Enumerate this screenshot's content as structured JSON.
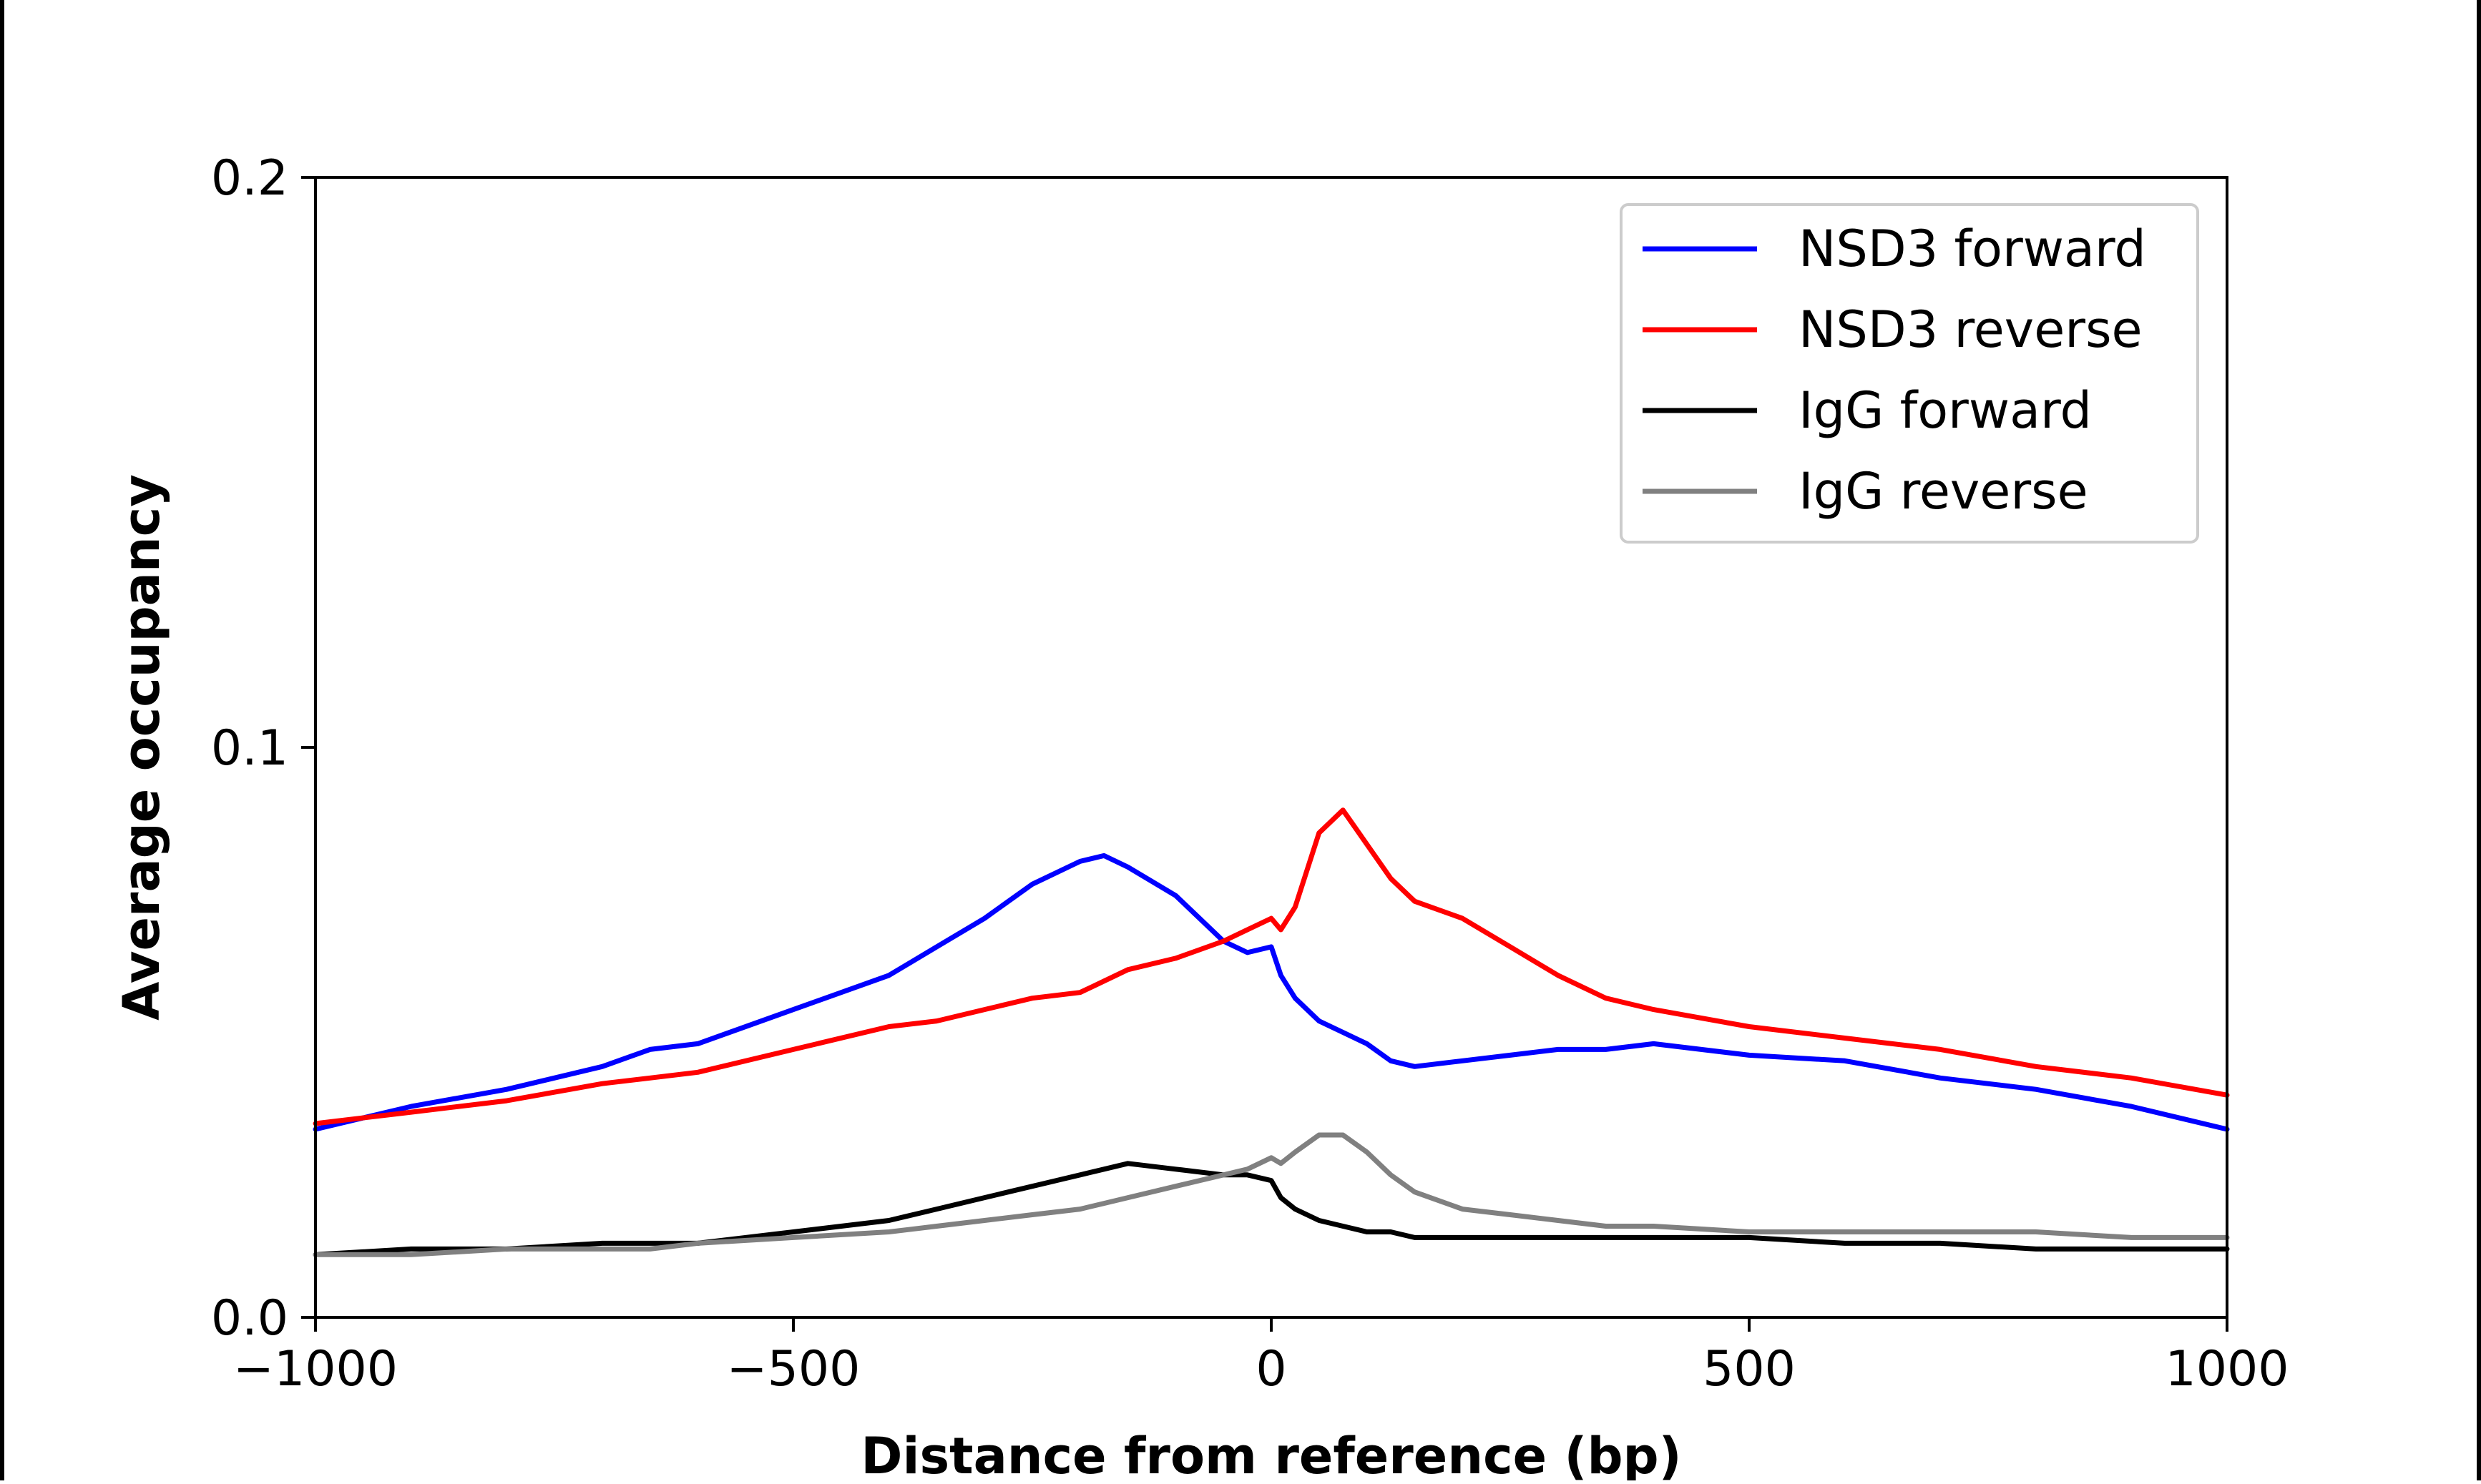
{
  "chart_data": {
    "type": "line",
    "xlabel": "Distance from reference (bp)",
    "ylabel": "Average occupancy",
    "xlim": [
      -1000,
      1000
    ],
    "ylim": [
      0,
      0.2
    ],
    "xticks": [
      -1000,
      -500,
      0,
      500,
      1000
    ],
    "xtick_labels": [
      "−1000",
      "−500",
      "0",
      "500",
      "1000"
    ],
    "yticks": [
      0.0,
      0.1,
      0.2
    ],
    "ytick_labels": [
      "0.0",
      "0.1",
      "0.2"
    ],
    "grid": false,
    "legend_position": "top-right",
    "x": [
      -1000,
      -900,
      -800,
      -700,
      -650,
      -600,
      -500,
      -400,
      -350,
      -300,
      -250,
      -200,
      -175,
      -150,
      -100,
      -50,
      -25,
      0,
      10,
      25,
      50,
      75,
      100,
      125,
      150,
      200,
      250,
      300,
      350,
      400,
      500,
      600,
      700,
      800,
      900,
      1000
    ],
    "series": [
      {
        "name": "NSD3 forward",
        "color": "#0000ff",
        "values": [
          0.033,
          0.037,
          0.04,
          0.044,
          0.047,
          0.048,
          0.054,
          0.06,
          0.065,
          0.07,
          0.076,
          0.08,
          0.081,
          0.079,
          0.074,
          0.066,
          0.064,
          0.065,
          0.06,
          0.056,
          0.052,
          0.05,
          0.048,
          0.045,
          0.044,
          0.045,
          0.046,
          0.047,
          0.047,
          0.048,
          0.046,
          0.045,
          0.042,
          0.04,
          0.037,
          0.033
        ]
      },
      {
        "name": "NSD3 reverse",
        "color": "#ff0000",
        "values": [
          0.034,
          0.036,
          0.038,
          0.041,
          0.042,
          0.043,
          0.047,
          0.051,
          0.052,
          0.054,
          0.056,
          0.057,
          0.059,
          0.061,
          0.063,
          0.066,
          0.068,
          0.07,
          0.068,
          0.072,
          0.085,
          0.089,
          0.083,
          0.077,
          0.073,
          0.07,
          0.065,
          0.06,
          0.056,
          0.054,
          0.051,
          0.049,
          0.047,
          0.044,
          0.042,
          0.039
        ]
      },
      {
        "name": "IgG forward",
        "color": "#000000",
        "values": [
          0.011,
          0.012,
          0.012,
          0.013,
          0.013,
          0.013,
          0.015,
          0.017,
          0.019,
          0.021,
          0.023,
          0.025,
          0.026,
          0.027,
          0.026,
          0.025,
          0.025,
          0.024,
          0.021,
          0.019,
          0.017,
          0.016,
          0.015,
          0.015,
          0.014,
          0.014,
          0.014,
          0.014,
          0.014,
          0.014,
          0.014,
          0.013,
          0.013,
          0.012,
          0.012,
          0.012
        ]
      },
      {
        "name": "IgG reverse",
        "color": "#808080",
        "values": [
          0.011,
          0.011,
          0.012,
          0.012,
          0.012,
          0.013,
          0.014,
          0.015,
          0.016,
          0.017,
          0.018,
          0.019,
          0.02,
          0.021,
          0.023,
          0.025,
          0.026,
          0.028,
          0.027,
          0.029,
          0.032,
          0.032,
          0.029,
          0.025,
          0.022,
          0.019,
          0.018,
          0.017,
          0.016,
          0.016,
          0.015,
          0.015,
          0.015,
          0.015,
          0.014,
          0.014
        ]
      }
    ]
  }
}
